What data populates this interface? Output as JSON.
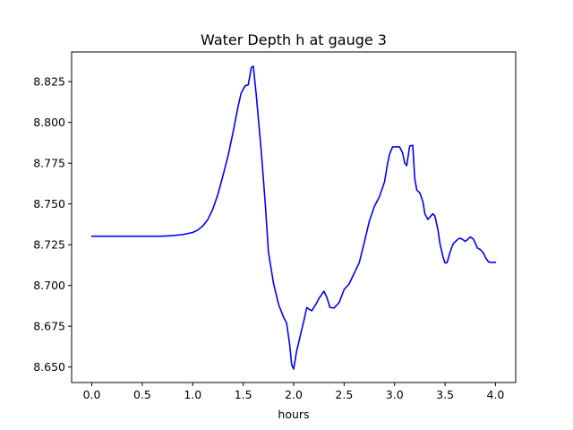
{
  "chart_data": {
    "type": "line",
    "title": "Water Depth h at gauge 3",
    "xlabel": "hours",
    "ylabel": "",
    "xlim": [
      -0.2,
      4.2
    ],
    "ylim": [
      8.6405,
      8.8432
    ],
    "xticks": [
      0.0,
      0.5,
      1.0,
      1.5,
      2.0,
      2.5,
      3.0,
      3.5,
      4.0
    ],
    "xtick_labels": [
      "0.0",
      "0.5",
      "1.0",
      "1.5",
      "2.0",
      "2.5",
      "3.0",
      "3.5",
      "4.0"
    ],
    "yticks": [
      8.65,
      8.675,
      8.7,
      8.725,
      8.75,
      8.775,
      8.8,
      8.825
    ],
    "ytick_labels": [
      "8.650",
      "8.675",
      "8.700",
      "8.725",
      "8.750",
      "8.775",
      "8.800",
      "8.825"
    ],
    "grid": false,
    "series": [
      {
        "color": "#0000ff",
        "x": [
          0.0,
          0.3,
          0.7,
          0.8,
          0.9,
          1.0,
          1.05,
          1.1,
          1.15,
          1.2,
          1.25,
          1.3,
          1.35,
          1.4,
          1.45,
          1.48,
          1.52,
          1.55,
          1.58,
          1.6,
          1.63,
          1.65,
          1.68,
          1.72,
          1.75,
          1.8,
          1.85,
          1.9,
          1.93,
          1.96,
          1.98,
          2.0,
          2.03,
          2.05,
          2.08,
          2.1,
          2.13,
          2.15,
          2.18,
          2.22,
          2.25,
          2.3,
          2.33,
          2.36,
          2.4,
          2.45,
          2.5,
          2.55,
          2.6,
          2.65,
          2.7,
          2.75,
          2.8,
          2.85,
          2.9,
          2.93,
          2.95,
          2.98,
          3.02,
          3.05,
          3.08,
          3.1,
          3.12,
          3.15,
          3.18,
          3.2,
          3.22,
          3.25,
          3.28,
          3.3,
          3.33,
          3.35,
          3.38,
          3.4,
          3.43,
          3.45,
          3.48,
          3.5,
          3.52,
          3.55,
          3.58,
          3.6,
          3.63,
          3.65,
          3.68,
          3.7,
          3.72,
          3.75,
          3.78,
          3.8,
          3.82,
          3.85,
          3.88,
          3.9,
          3.93,
          3.95,
          3.98,
          4.0
        ],
        "y": [
          8.7302,
          8.7302,
          8.7302,
          8.7306,
          8.7312,
          8.7325,
          8.734,
          8.7365,
          8.7405,
          8.747,
          8.756,
          8.7675,
          8.7795,
          8.794,
          8.81,
          8.818,
          8.8225,
          8.823,
          8.8335,
          8.8345,
          8.8165,
          8.8025,
          8.7815,
          8.749,
          8.7205,
          8.7015,
          8.6885,
          8.6805,
          8.677,
          8.664,
          8.6515,
          8.6488,
          8.66,
          8.665,
          8.673,
          8.678,
          8.6865,
          8.6855,
          8.6845,
          8.6885,
          8.692,
          8.6965,
          8.6925,
          8.6865,
          8.6862,
          8.6895,
          8.6975,
          8.701,
          8.7075,
          8.714,
          8.7265,
          8.7395,
          8.7485,
          8.7545,
          8.7635,
          8.7745,
          8.7805,
          8.785,
          8.785,
          8.785,
          8.7812,
          8.7752,
          8.7735,
          8.7855,
          8.786,
          8.7655,
          8.7585,
          8.7568,
          8.7515,
          8.744,
          8.7405,
          8.742,
          8.744,
          8.7425,
          8.734,
          8.7255,
          8.7175,
          8.7138,
          8.714,
          8.7205,
          8.7255,
          8.7268,
          8.7285,
          8.729,
          8.728,
          8.727,
          8.728,
          8.7298,
          8.7285,
          8.726,
          8.723,
          8.722,
          8.72,
          8.7172,
          8.7145,
          8.7142,
          8.7142,
          8.7142
        ]
      }
    ]
  }
}
